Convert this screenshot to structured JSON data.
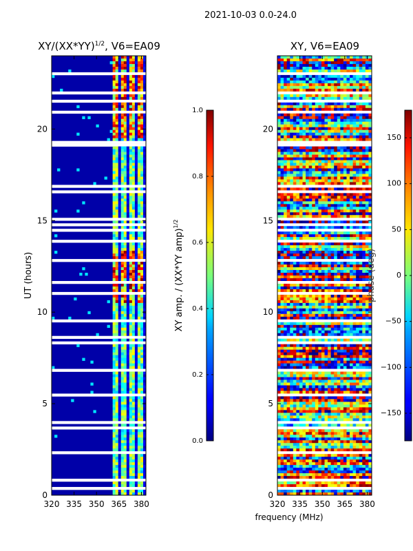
{
  "figure": {
    "suptitle": "2021-10-03 0.0-24.0",
    "shared_xlabel": "frequency (MHz)"
  },
  "chart_data": [
    {
      "type": "heatmap",
      "title_main": "XY/(XX*YY)",
      "title_sup": "1/2",
      "title_tail": ", V6=EA09",
      "xlabel": "",
      "ylabel": "UT (hours)",
      "xlim": [
        320,
        383
      ],
      "ylim": [
        0,
        24
      ],
      "x_ticks": [
        320,
        335,
        350,
        365,
        380
      ],
      "y_ticks": [
        0,
        5,
        10,
        15,
        20
      ],
      "colorscale": "jet",
      "colorbar": {
        "label_main": "XY amp. / (XX*YY amp)",
        "label_sup": "1/2",
        "range": [
          0.0,
          1.0
        ],
        "ticks": [
          "0.0",
          "0.2",
          "0.4",
          "0.6",
          "0.8",
          "1.0"
        ],
        "tick_values": [
          0.0,
          0.2,
          0.4,
          0.6,
          0.8,
          1.0
        ]
      }
    },
    {
      "type": "heatmap",
      "title_main": "XY, V6=EA09",
      "xlabel": "frequency (MHz)",
      "ylabel": "",
      "xlim": [
        320,
        383
      ],
      "ylim": [
        0,
        24
      ],
      "x_ticks": [
        320,
        335,
        350,
        365,
        380
      ],
      "y_ticks": [
        0,
        5,
        10,
        15,
        20
      ],
      "colorscale": "jet",
      "colorbar": {
        "label_main": "phase (deg)",
        "range": [
          -180,
          180
        ],
        "ticks": [
          "−150",
          "−100",
          "−50",
          "0",
          "50",
          "100",
          "150"
        ],
        "tick_values": [
          -150,
          -100,
          -50,
          0,
          50,
          100,
          150
        ]
      }
    }
  ]
}
